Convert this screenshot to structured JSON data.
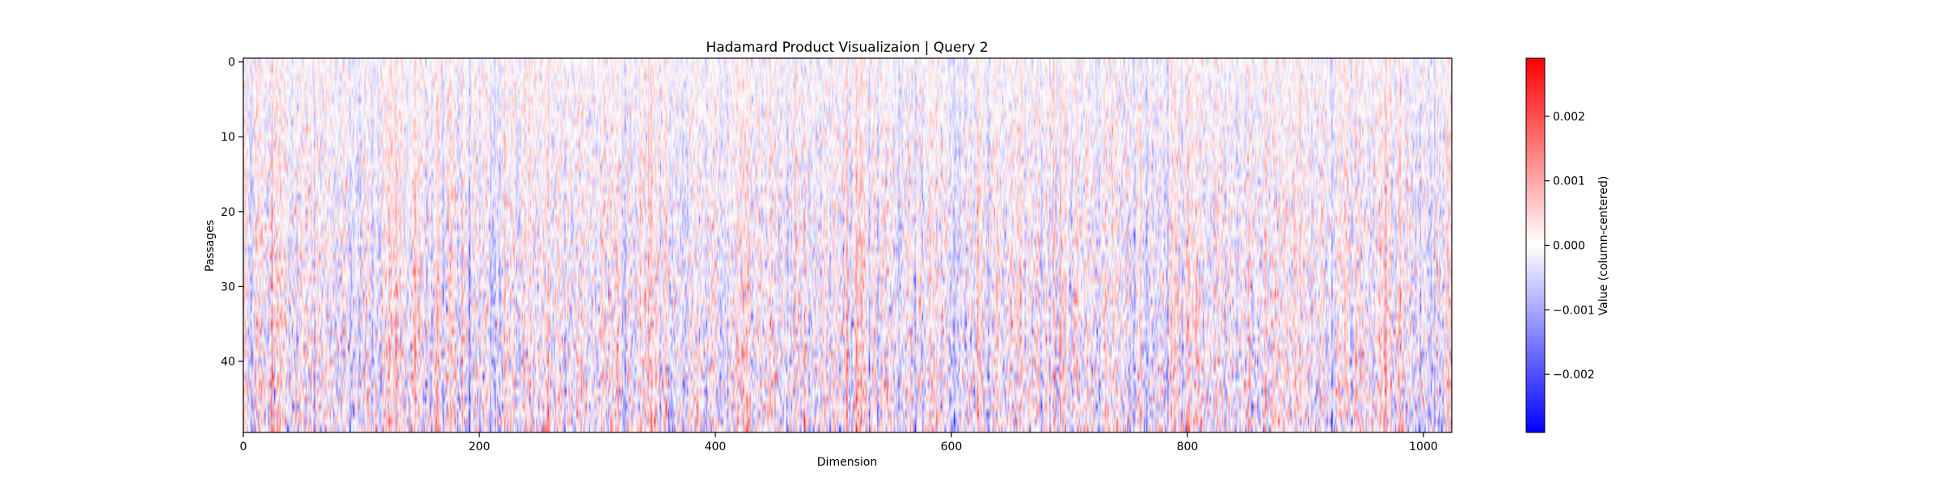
{
  "chart_data": {
    "type": "heatmap",
    "title": "Hadamard Product Visualizaion | Query 2",
    "xlabel": "Dimension",
    "ylabel": "Passages",
    "xlim": [
      0,
      1024
    ],
    "ylim": [
      50,
      0
    ],
    "n_rows": 50,
    "n_cols": 1024,
    "x_ticks": [
      0,
      200,
      400,
      600,
      800,
      1000
    ],
    "x_tick_labels": [
      "0",
      "200",
      "400",
      "600",
      "800",
      "1000"
    ],
    "y_ticks": [
      0,
      10,
      20,
      30,
      40
    ],
    "y_tick_labels": [
      "0",
      "10",
      "20",
      "30",
      "40"
    ],
    "colormap": "bwr",
    "color_min": "#0000ff",
    "color_mid": "#ffffff",
    "color_max": "#ff0000",
    "value_range": [
      -0.0029,
      0.0029
    ],
    "colorbar": {
      "label": "Value (column-centered)",
      "ticks": [
        0.002,
        0.001,
        0.0,
        -0.001,
        -0.002
      ],
      "tick_labels": [
        "0.002",
        "0.001",
        "0.000",
        "−0.001",
        "−0.002"
      ]
    },
    "value_pattern": "dense per-cell values, column-centered; strong vertical striping across dimensions with larger magnitudes in lower passages"
  }
}
